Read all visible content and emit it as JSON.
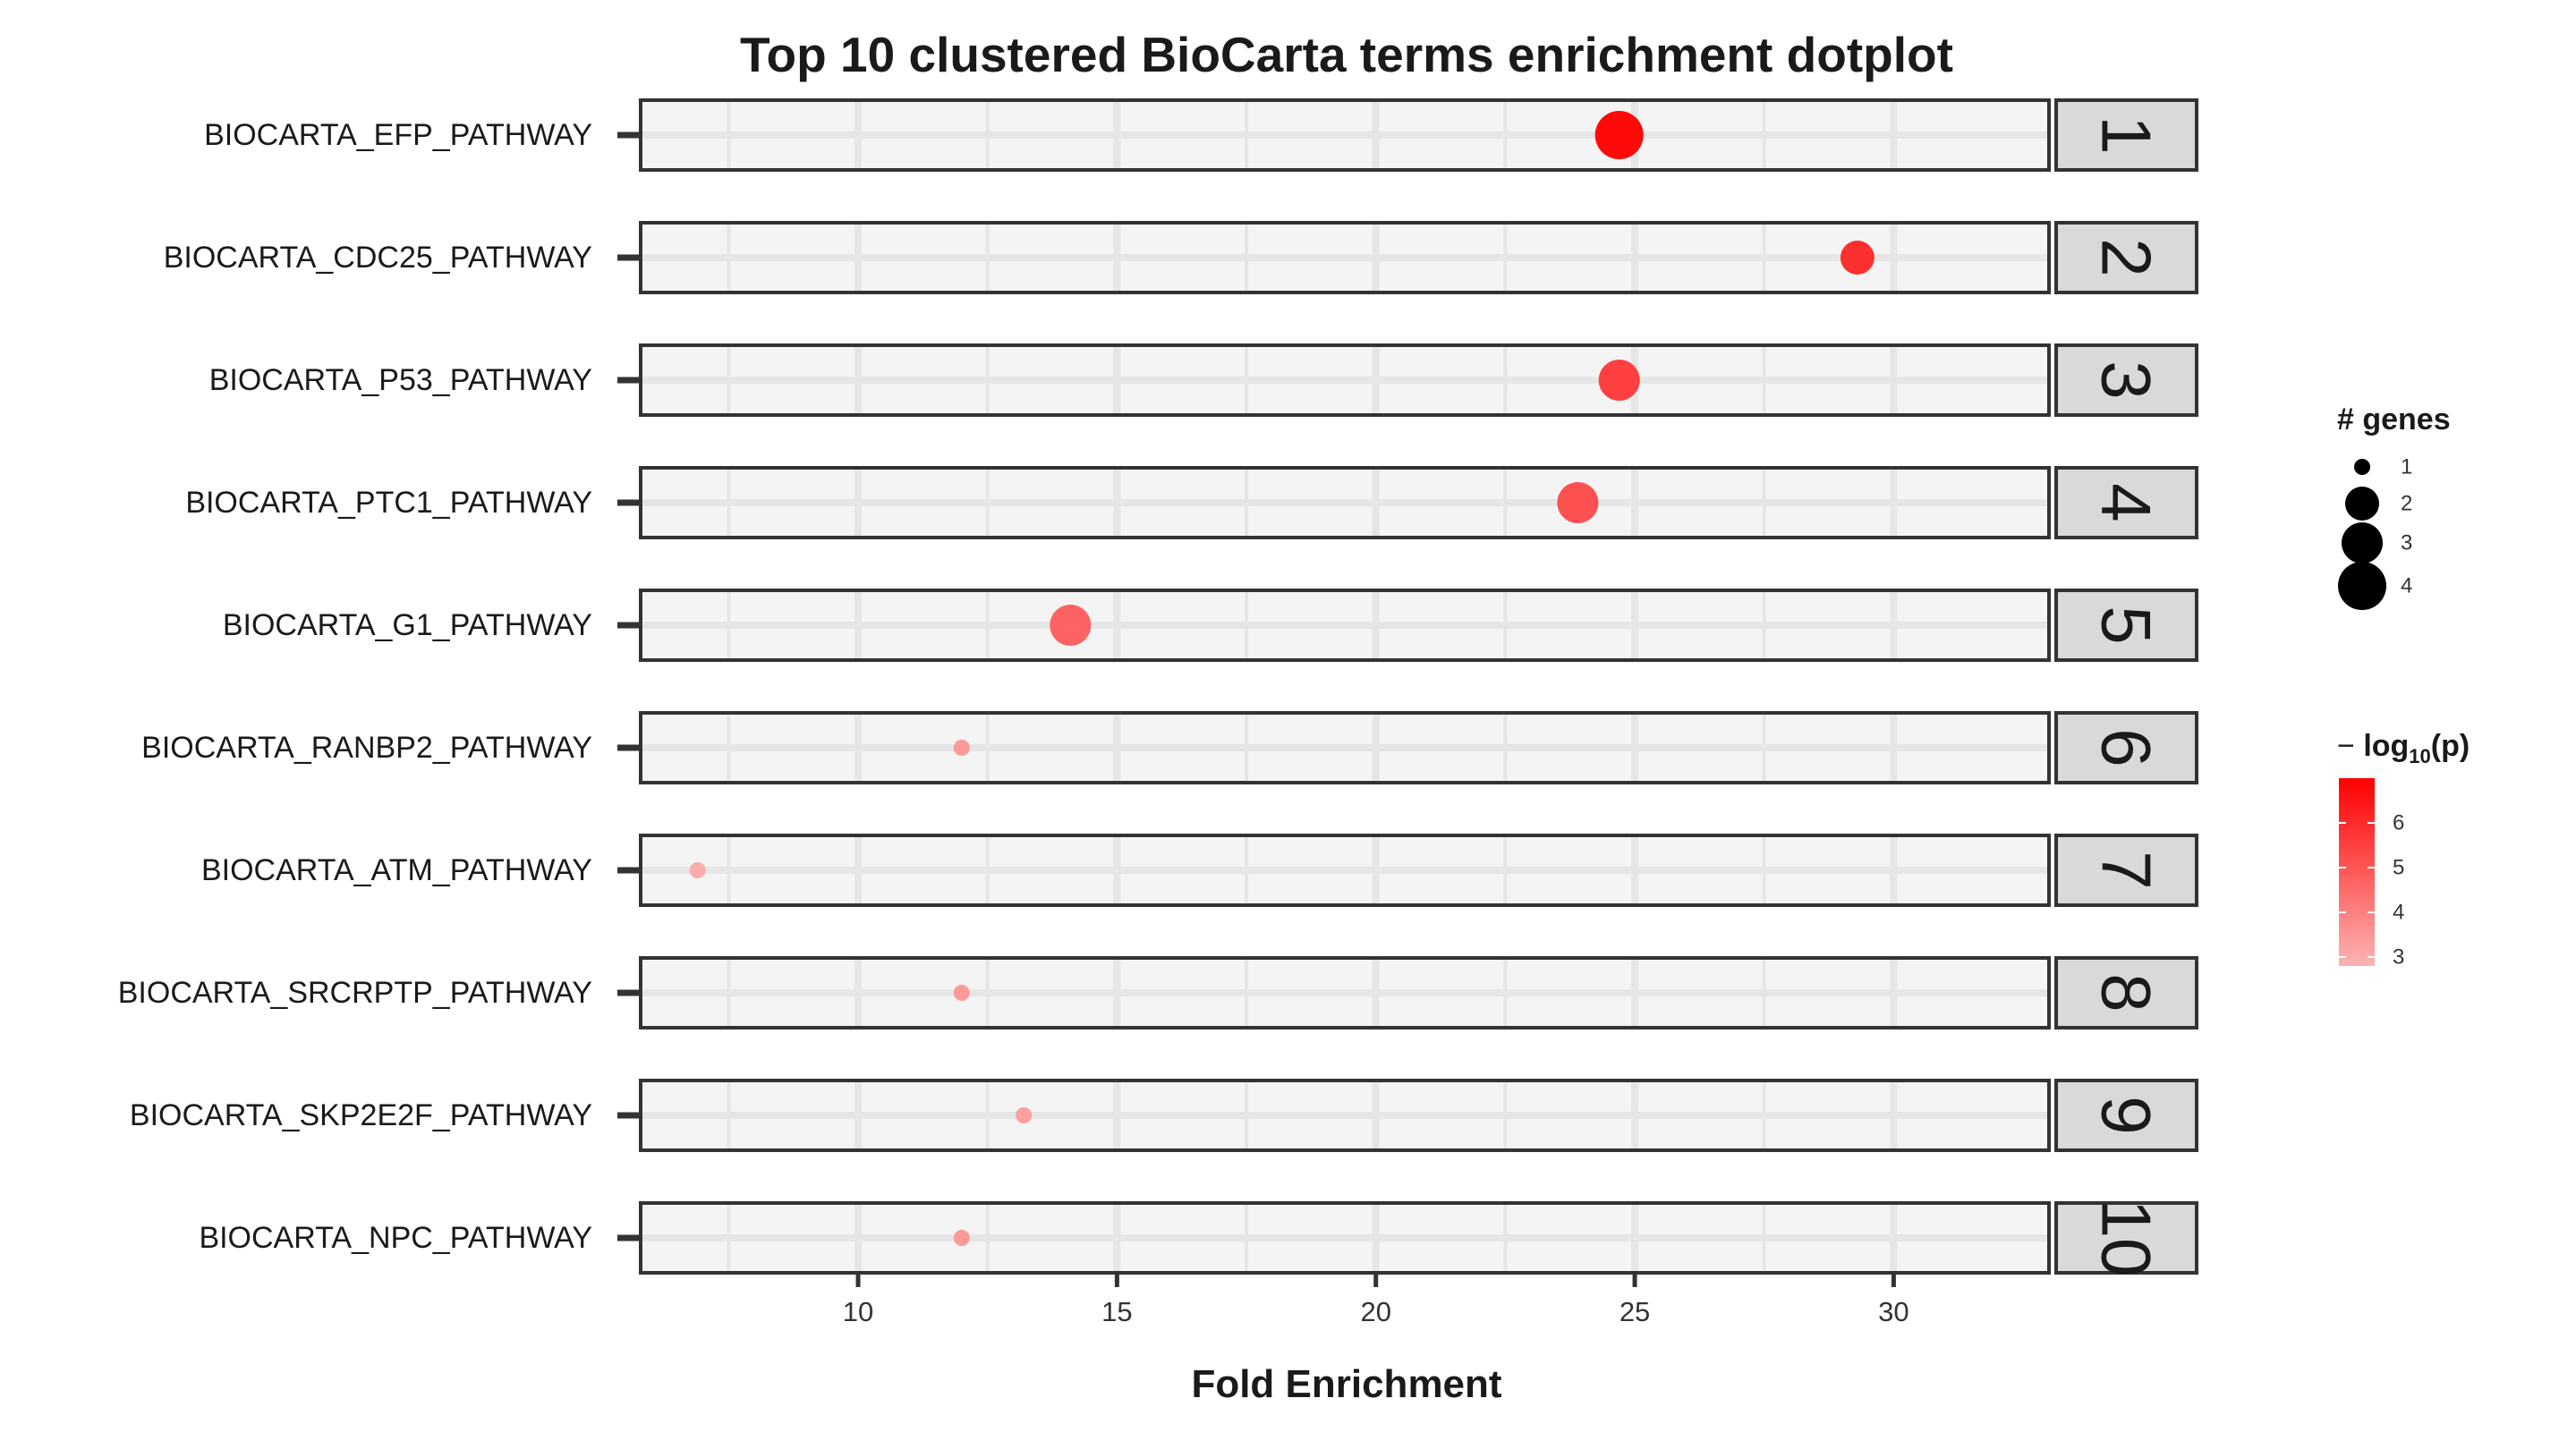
{
  "chart_data": {
    "type": "scatter",
    "title": "Top 10 clustered BioCarta terms enrichment dotplot",
    "xlabel": "Fold Enrichment",
    "ylabel": "",
    "xlim": [
      5.8,
      33.0
    ],
    "x_ticks": [
      10,
      15,
      20,
      25,
      30
    ],
    "grid": true,
    "legend_placement": "right",
    "facets": [
      "1",
      "2",
      "3",
      "4",
      "5",
      "6",
      "7",
      "8",
      "9",
      "10"
    ],
    "categories": [
      "BIOCARTA_EFP_PATHWAY",
      "BIOCARTA_CDC25_PATHWAY",
      "BIOCARTA_P53_PATHWAY",
      "BIOCARTA_PTC1_PATHWAY",
      "BIOCARTA_G1_PATHWAY",
      "BIOCARTA_RANBP2_PATHWAY",
      "BIOCARTA_ATM_PATHWAY",
      "BIOCARTA_SRCRPTP_PATHWAY",
      "BIOCARTA_SKP2E2F_PATHWAY",
      "BIOCARTA_NPC_PATHWAY"
    ],
    "points": [
      {
        "term": "BIOCARTA_EFP_PATHWAY",
        "facet": "1",
        "fold_enrichment": 24.7,
        "genes": 4,
        "neg_log10_p": 6.8
      },
      {
        "term": "BIOCARTA_CDC25_PATHWAY",
        "facet": "2",
        "fold_enrichment": 29.3,
        "genes": 2,
        "neg_log10_p": 5.9
      },
      {
        "term": "BIOCARTA_P53_PATHWAY",
        "facet": "3",
        "fold_enrichment": 24.7,
        "genes": 3,
        "neg_log10_p": 5.5
      },
      {
        "term": "BIOCARTA_PTC1_PATHWAY",
        "facet": "4",
        "fold_enrichment": 23.9,
        "genes": 3,
        "neg_log10_p": 5.1
      },
      {
        "term": "BIOCARTA_G1_PATHWAY",
        "facet": "5",
        "fold_enrichment": 14.1,
        "genes": 3,
        "neg_log10_p": 4.7
      },
      {
        "term": "BIOCARTA_RANBP2_PATHWAY",
        "facet": "6",
        "fold_enrichment": 12.0,
        "genes": 1,
        "neg_log10_p": 3.4
      },
      {
        "term": "BIOCARTA_ATM_PATHWAY",
        "facet": "7",
        "fold_enrichment": 6.9,
        "genes": 1,
        "neg_log10_p": 3.0
      },
      {
        "term": "BIOCARTA_SRCRPTP_PATHWAY",
        "facet": "8",
        "fold_enrichment": 12.0,
        "genes": 1,
        "neg_log10_p": 3.4
      },
      {
        "term": "BIOCARTA_SKP2E2F_PATHWAY",
        "facet": "9",
        "fold_enrichment": 13.2,
        "genes": 1,
        "neg_log10_p": 3.3
      },
      {
        "term": "BIOCARTA_NPC_PATHWAY",
        "facet": "10",
        "fold_enrichment": 12.0,
        "genes": 1,
        "neg_log10_p": 3.4
      }
    ],
    "size_legend": {
      "title": "# genes",
      "values": [
        1,
        2,
        3,
        4
      ],
      "labels": [
        "1",
        "2",
        "3",
        "4"
      ]
    },
    "color_legend": {
      "title_prefix": "−",
      "title_main": "log",
      "title_sub": "10",
      "title_suffix": "(p)",
      "range": [
        2.8,
        7.0
      ],
      "ticks": [
        3,
        4,
        5,
        6
      ],
      "labels": [
        "3",
        "4",
        "5",
        "6"
      ],
      "color_low": "#fbb4b4",
      "color_high": "#ff0000"
    },
    "colors": {
      "panel_background": "#f4f4f4",
      "panel_border": "#333333",
      "strip_background": "#d9d9d9",
      "grid": "#e6e6e6"
    }
  }
}
